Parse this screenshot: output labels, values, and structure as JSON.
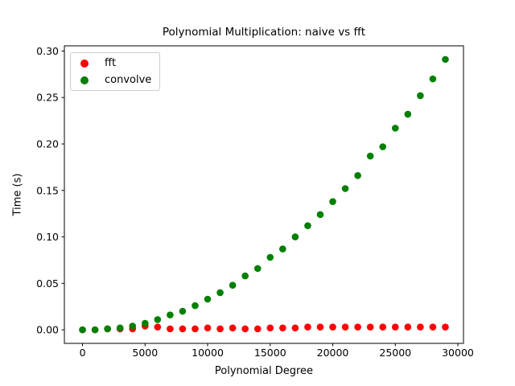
{
  "chart_data": {
    "type": "scatter",
    "title": "Polynomial Multiplication: naive vs fft",
    "xlabel": "Polynomial Degree",
    "ylabel": "Time (s)",
    "x": [
      0,
      1000,
      2000,
      3000,
      4000,
      5000,
      6000,
      7000,
      8000,
      9000,
      10000,
      11000,
      12000,
      13000,
      14000,
      15000,
      16000,
      17000,
      18000,
      19000,
      20000,
      21000,
      22000,
      23000,
      24000,
      25000,
      26000,
      27000,
      28000,
      29000
    ],
    "series": [
      {
        "name": "fft",
        "color": "#ff0000",
        "values": [
          0.0,
          0.0,
          0.001,
          0.001,
          0.001,
          0.004,
          0.003,
          0.001,
          0.001,
          0.001,
          0.002,
          0.001,
          0.002,
          0.001,
          0.001,
          0.002,
          0.002,
          0.002,
          0.003,
          0.003,
          0.003,
          0.003,
          0.003,
          0.003,
          0.003,
          0.003,
          0.003,
          0.003,
          0.003,
          0.003
        ]
      },
      {
        "name": "convolve",
        "color": "#008000",
        "values": [
          0.0,
          0.0,
          0.001,
          0.002,
          0.004,
          0.007,
          0.011,
          0.016,
          0.02,
          0.026,
          0.033,
          0.04,
          0.048,
          0.058,
          0.066,
          0.078,
          0.087,
          0.1,
          0.112,
          0.124,
          0.138,
          0.152,
          0.166,
          0.187,
          0.197,
          0.217,
          0.232,
          0.252,
          0.27,
          0.291
        ]
      }
    ],
    "xlim": [
      -1450,
      30450
    ],
    "ylim": [
      -0.0146,
      0.3056
    ],
    "x_ticks": {
      "values": [
        0,
        5000,
        10000,
        15000,
        20000,
        25000,
        30000
      ],
      "labels": [
        "0",
        "5000",
        "10000",
        "15000",
        "20000",
        "25000",
        "30000"
      ]
    },
    "y_ticks": {
      "values": [
        0.0,
        0.05,
        0.1,
        0.15,
        0.2,
        0.25,
        0.3
      ],
      "labels": [
        "0.00",
        "0.05",
        "0.10",
        "0.15",
        "0.20",
        "0.25",
        "0.30"
      ]
    },
    "grid": false,
    "legend_position": "upper left",
    "axis_color": "#000000"
  }
}
